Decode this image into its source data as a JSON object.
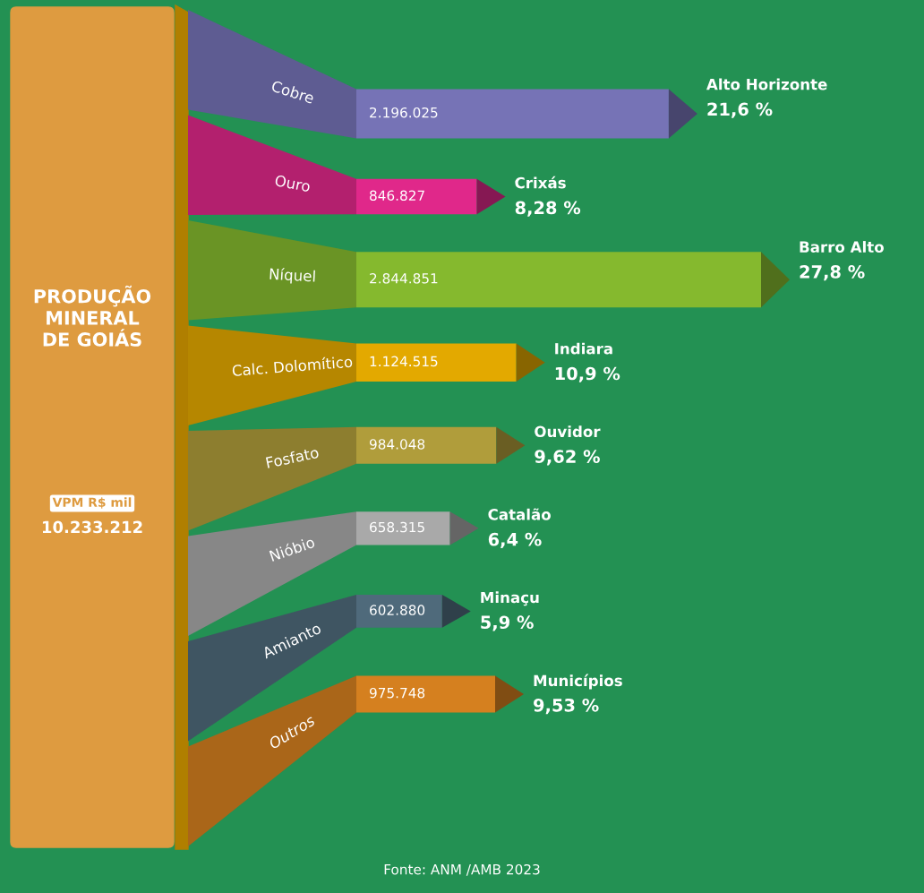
{
  "chart_data": {
    "type": "other",
    "title": "PRODUÇÃO MINERAL DE GOIÁS",
    "subtitle": "VPM R$ mil",
    "categories": [
      "Cobre",
      "Ouro",
      "Níquel",
      "Calc. Dolomítico",
      "Fosfato",
      "Nióbio",
      "Amianto",
      "Outros"
    ],
    "series": [
      {
        "values": [
          2196025,
          846827,
          2844851,
          1124515,
          984048,
          658315,
          602880,
          975748
        ],
        "value_labels": [
          "2.196.025",
          "846.827",
          "2.844.851",
          "1.124.515",
          "984.048",
          "658.315",
          "602.880",
          "975.748"
        ],
        "colors": [
          "#7673b6",
          "#e0288a",
          "#85b92e",
          "#e3a900",
          "#b09d3b",
          "#a9a9a9",
          "#4f6a7b",
          "#d5801f"
        ]
      },
      {
        "values": [
          21.6,
          8.28,
          27.8,
          10.9,
          9.62,
          6.4,
          5.9,
          9.53
        ],
        "value_labels": [
          "21,6 %",
          "8,28 %",
          "27,8 %",
          "10,9 %",
          "9,62 %",
          "6,4 %",
          "5,9 %",
          "9,53 %"
        ]
      }
    ],
    "annotations": [
      "10.233.212",
      "Fonte: ANM /AMB 2023",
      {
        "text": "Alto Horizonte",
        "y": "Cobre"
      },
      {
        "text": "Crixás",
        "y": "Ouro"
      },
      {
        "text": "Barro Alto",
        "y": "Níquel"
      },
      {
        "text": "Indiara",
        "y": "Calc. Dolomítico"
      },
      {
        "text": "Ouvidor",
        "y": "Fosfato"
      },
      {
        "text": "Catalão",
        "y": "Nióbio"
      },
      {
        "text": "Minaçu",
        "y": "Amianto"
      },
      {
        "text": "Municípios",
        "y": "Outros"
      }
    ]
  }
}
